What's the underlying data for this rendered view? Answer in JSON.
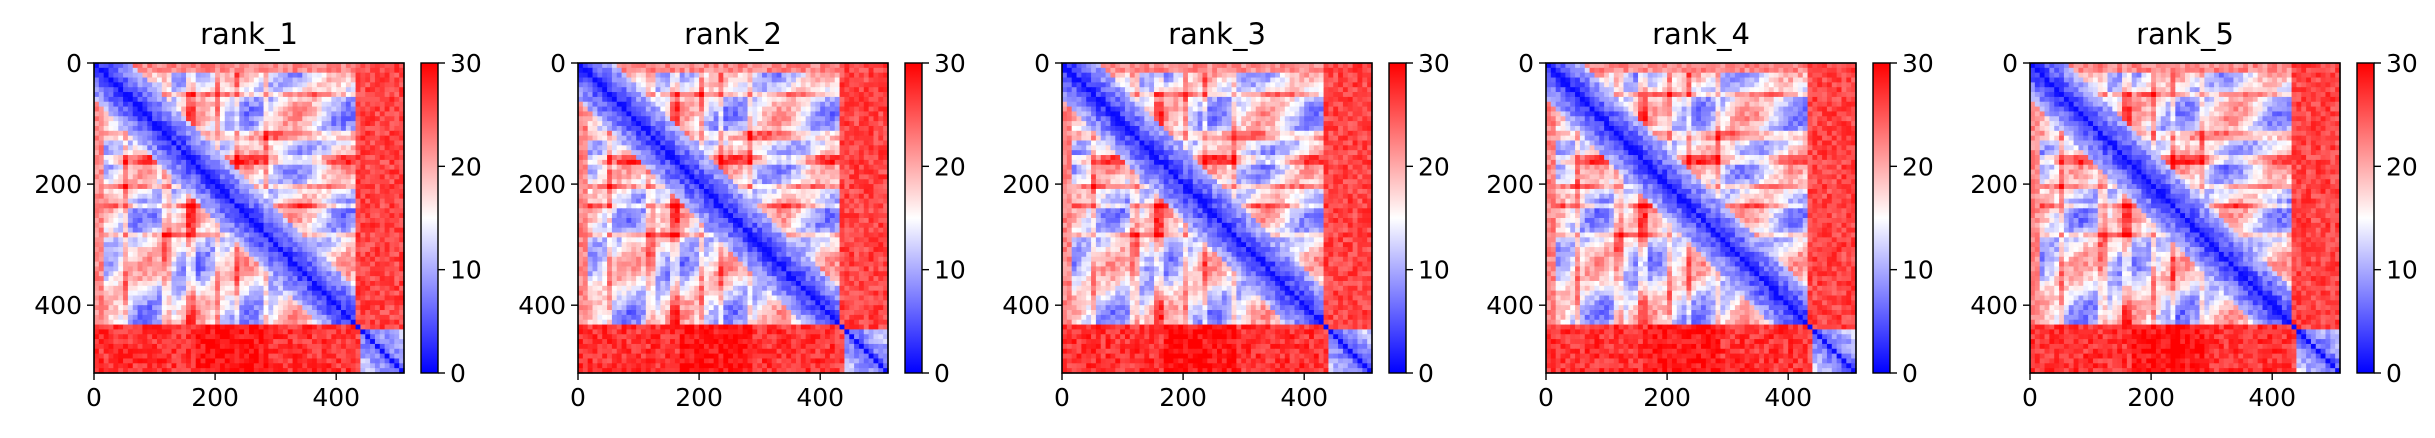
{
  "chart_data": [
    {
      "type": "heatmap",
      "title": "rank_1",
      "x_ticks": [
        "0",
        "200",
        "400"
      ],
      "y_ticks": [
        "0",
        "200",
        "400"
      ],
      "xlim": [
        0,
        512
      ],
      "ylim": [
        512,
        0
      ],
      "colorbar": {
        "min": 0,
        "max": 30,
        "ticks": [
          "0",
          "10",
          "20",
          "30"
        ],
        "colormap": [
          "#0000ff",
          "#ffffff",
          "#ff0000"
        ]
      }
    },
    {
      "type": "heatmap",
      "title": "rank_2",
      "x_ticks": [
        "0",
        "200",
        "400"
      ],
      "y_ticks": [
        "0",
        "200",
        "400"
      ],
      "xlim": [
        0,
        512
      ],
      "ylim": [
        512,
        0
      ],
      "colorbar": {
        "min": 0,
        "max": 30,
        "ticks": [
          "0",
          "10",
          "20",
          "30"
        ],
        "colormap": [
          "#0000ff",
          "#ffffff",
          "#ff0000"
        ]
      }
    },
    {
      "type": "heatmap",
      "title": "rank_3",
      "x_ticks": [
        "0",
        "200",
        "400"
      ],
      "y_ticks": [
        "0",
        "200",
        "400"
      ],
      "xlim": [
        0,
        512
      ],
      "ylim": [
        512,
        0
      ],
      "colorbar": {
        "min": 0,
        "max": 30,
        "ticks": [
          "0",
          "10",
          "20",
          "30"
        ],
        "colormap": [
          "#0000ff",
          "#ffffff",
          "#ff0000"
        ]
      }
    },
    {
      "type": "heatmap",
      "title": "rank_4",
      "x_ticks": [
        "0",
        "200",
        "400"
      ],
      "y_ticks": [
        "0",
        "200",
        "400"
      ],
      "xlim": [
        0,
        512
      ],
      "ylim": [
        512,
        0
      ],
      "colorbar": {
        "min": 0,
        "max": 30,
        "ticks": [
          "0",
          "10",
          "20",
          "30"
        ],
        "colormap": [
          "#0000ff",
          "#ffffff",
          "#ff0000"
        ]
      }
    },
    {
      "type": "heatmap",
      "title": "rank_5",
      "x_ticks": [
        "0",
        "200",
        "400"
      ],
      "y_ticks": [
        "0",
        "200",
        "400"
      ],
      "xlim": [
        0,
        512
      ],
      "ylim": [
        512,
        0
      ],
      "colorbar": {
        "min": 0,
        "max": 30,
        "ticks": [
          "0",
          "10",
          "20",
          "30"
        ],
        "colormap": [
          "#0000ff",
          "#ffffff",
          "#ff0000"
        ]
      }
    }
  ]
}
